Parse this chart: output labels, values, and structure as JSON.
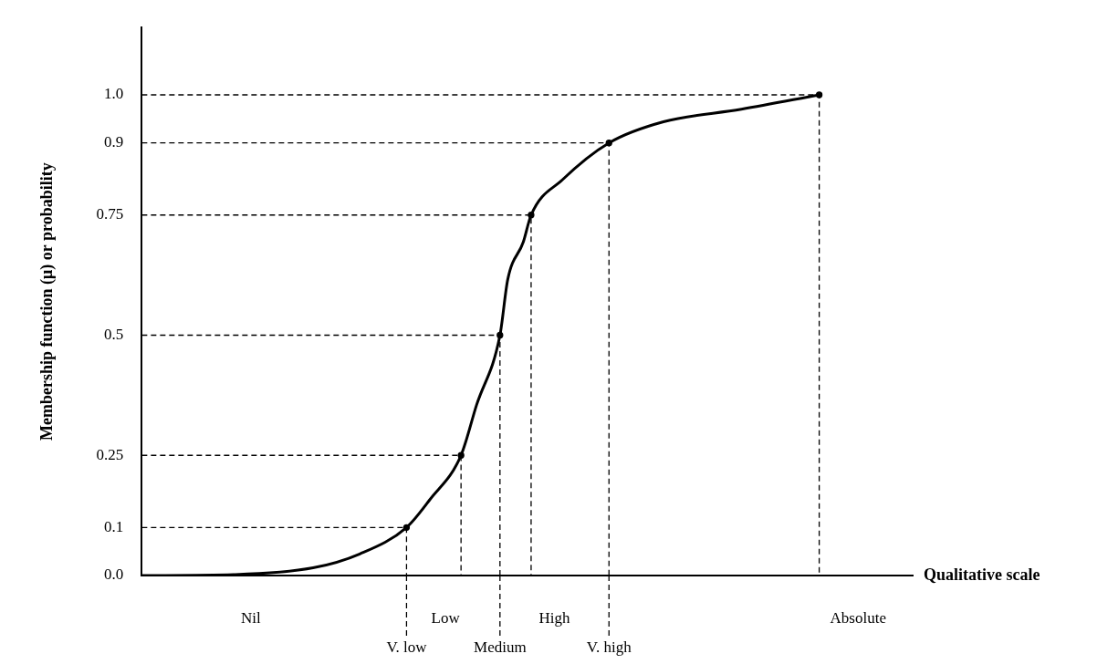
{
  "chart_data": {
    "type": "line",
    "xlabel": "Qualitative scale",
    "ylabel": "Membership function (μ) or probability",
    "categories": [
      null,
      null,
      null,
      null,
      null,
      null,
      null,
      null,
      null,
      null,
      null,
      null,
      null,
      null,
      "Nil",
      null,
      null,
      null,
      null,
      null,
      null,
      null,
      null,
      null,
      null,
      null,
      null,
      null,
      null,
      null,
      null,
      null,
      null,
      null,
      "V. low",
      null,
      null,
      null,
      null,
      "Low",
      null,
      null,
      null,
      null,
      null,
      null,
      "Medium",
      null,
      null,
      null,
      null,
      null,
      null,
      "High",
      null,
      null,
      null,
      null,
      null,
      null,
      "V. high",
      null,
      null,
      null,
      null,
      null,
      null,
      null,
      null,
      null,
      null,
      null,
      null,
      null,
      null,
      null,
      null,
      null,
      null,
      null,
      null,
      null,
      null,
      null,
      null,
      null,
      null,
      null,
      null,
      null,
      null,
      null,
      "Absolute",
      null,
      null,
      null,
      null,
      null,
      null,
      null
    ],
    "ylim": [
      0,
      1.14
    ],
    "yticks": [
      {
        "value": 0,
        "label": "0.0"
      },
      0.1,
      0.25,
      0.5,
      0.75,
      0.9,
      {
        "value": 1,
        "label": "1.0"
      }
    ],
    "series": [
      {
        "color": "#000000",
        "marker": "none",
        "line_style": "solid",
        "values": [
          0,
          null,
          null,
          null,
          null,
          null,
          null,
          null,
          null,
          null,
          null,
          null,
          0.002,
          null,
          null,
          null,
          null,
          null,
          null,
          null,
          null,
          null,
          0.016,
          null,
          null,
          null,
          null,
          null,
          0.045,
          null,
          null,
          null,
          null,
          null,
          0.1,
          null,
          null,
          0.158,
          null,
          null,
          null,
          0.25,
          null,
          0.355,
          null,
          null,
          0.5,
          0.616,
          null,
          0.694,
          0.75,
          null,
          null,
          null,
          0.823,
          null,
          null,
          null,
          null,
          null,
          0.9,
          null,
          null,
          null,
          null,
          null,
          null,
          0.944,
          null,
          null,
          null,
          null,
          null,
          null,
          null,
          null,
          null,
          0.97,
          null,
          null,
          null,
          null,
          null,
          null,
          null,
          null,
          null,
          1.0,
          null,
          null,
          null,
          null,
          null,
          null,
          null,
          null,
          null,
          null,
          null,
          null
        ]
      },
      {
        "type": "lollipop",
        "color": "#000000",
        "marker": "circle",
        "line_style": "dashed",
        "values": [
          null,
          null,
          null,
          null,
          null,
          null,
          null,
          null,
          null,
          null,
          null,
          null,
          null,
          null,
          null,
          null,
          null,
          null,
          null,
          null,
          null,
          null,
          null,
          null,
          null,
          null,
          null,
          null,
          null,
          null,
          null,
          null,
          null,
          null,
          0.1,
          null,
          null,
          null,
          null,
          null,
          null,
          0.25,
          null,
          null,
          null,
          null,
          0.5,
          null,
          null,
          null,
          0.75,
          null,
          null,
          null,
          null,
          null,
          null,
          null,
          null,
          null,
          0.9,
          null,
          null,
          null,
          null,
          null,
          null,
          null,
          null,
          null,
          null,
          null,
          null,
          null,
          null,
          null,
          null,
          null,
          null,
          null,
          null,
          null,
          null,
          null,
          null,
          null,
          null,
          1.0,
          null,
          null,
          null,
          null,
          null,
          null,
          null,
          null,
          null,
          null,
          null,
          null
        ]
      }
    ],
    "grid": false,
    "legend": false
  }
}
